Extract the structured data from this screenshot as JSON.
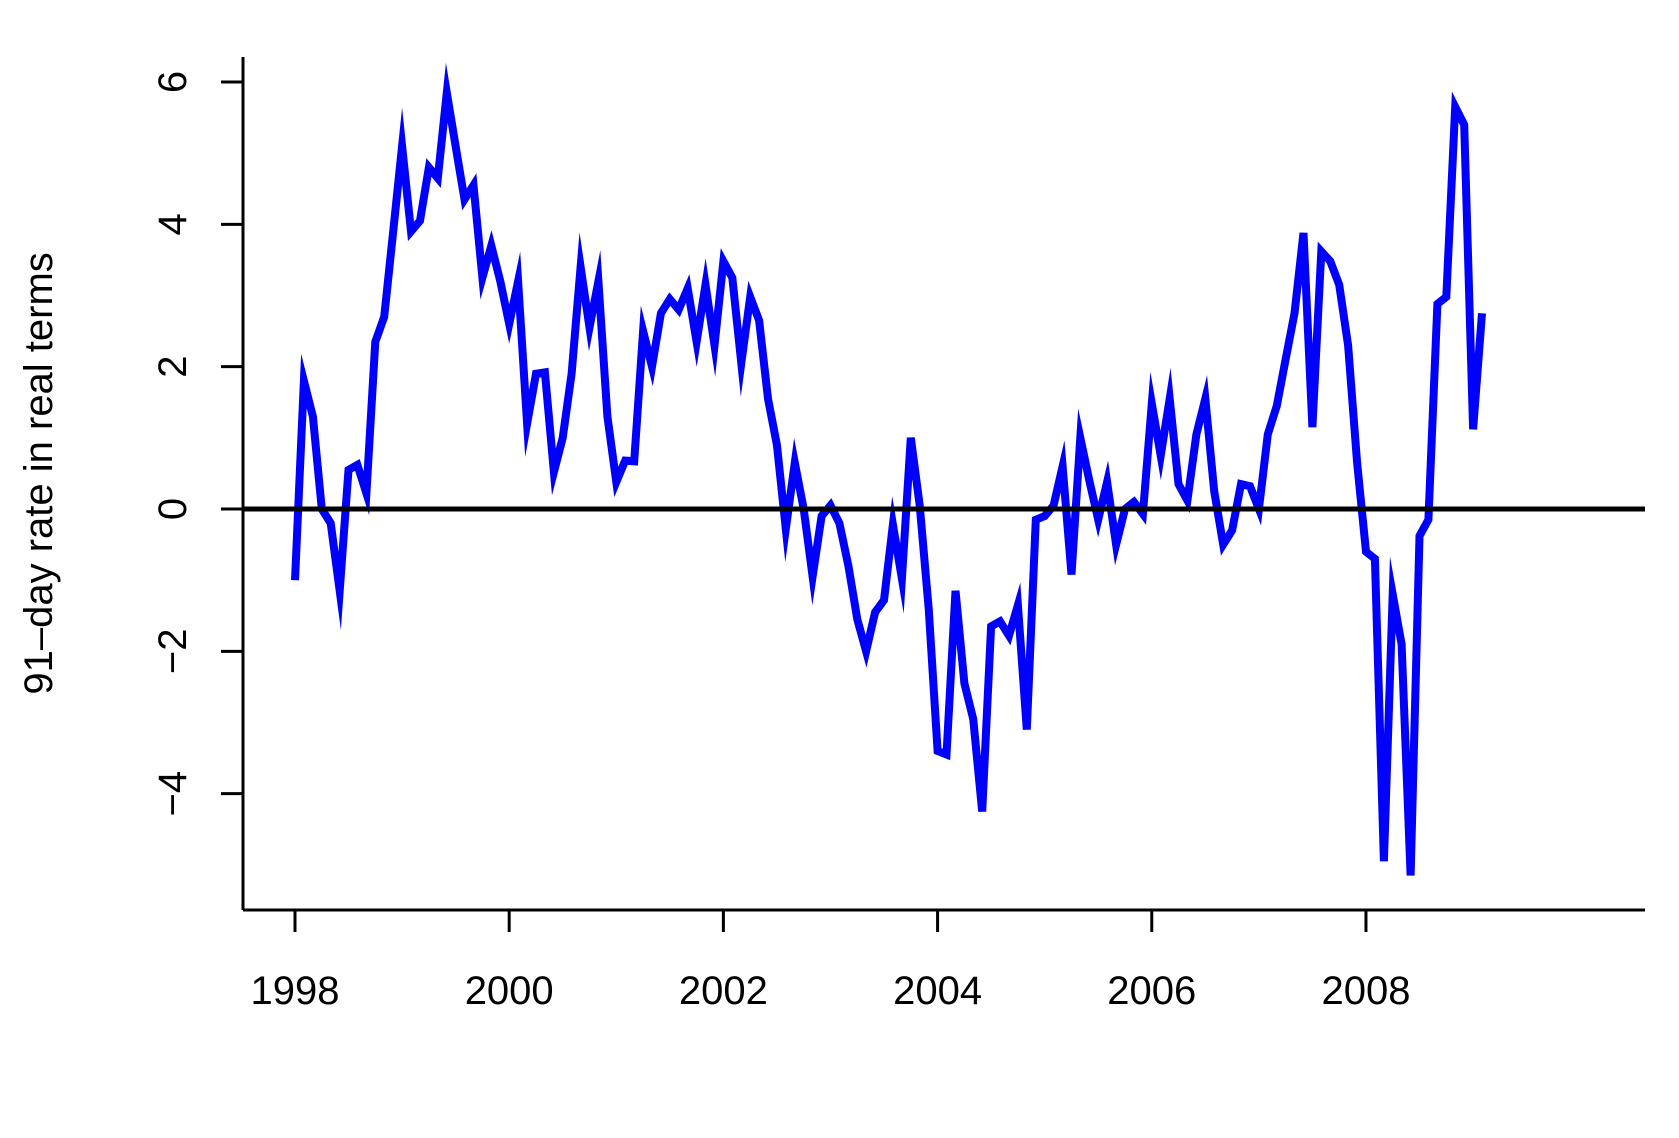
{
  "chart_data": {
    "type": "line",
    "title": "",
    "xlabel": "",
    "ylabel": "91–day rate in real terms",
    "xlim": [
      1997.78,
      2009.8
    ],
    "ylim": [
      -5.3,
      6.3
    ],
    "x_ticks": [
      1998,
      2000,
      2002,
      2004,
      2006,
      2008
    ],
    "x_tick_labels": [
      "1998",
      "2000",
      "2002",
      "2004",
      "2006",
      "2008"
    ],
    "y_ticks": [
      -4,
      -2,
      0,
      2,
      4,
      6
    ],
    "y_tick_labels": [
      "−4",
      "−2",
      "0",
      "2",
      "4",
      "6"
    ],
    "reference_line": {
      "y": 0,
      "color": "#000000"
    },
    "grid": false,
    "series": [
      {
        "color": "#0000ff",
        "x": [
          1998.0,
          1998.083,
          1998.167,
          1998.25,
          1998.333,
          1998.417,
          1998.5,
          1998.583,
          1998.667,
          1998.75,
          1998.833,
          1998.917,
          1999.0,
          1999.083,
          1999.167,
          1999.25,
          1999.333,
          1999.417,
          1999.5,
          1999.583,
          1999.667,
          1999.75,
          1999.833,
          1999.917,
          2000.0,
          2000.083,
          2000.167,
          2000.25,
          2000.333,
          2000.417,
          2000.5,
          2000.583,
          2000.667,
          2000.75,
          2000.833,
          2000.917,
          2001.0,
          2001.083,
          2001.167,
          2001.25,
          2001.333,
          2001.417,
          2001.5,
          2001.583,
          2001.667,
          2001.75,
          2001.833,
          2001.917,
          2002.0,
          2002.083,
          2002.167,
          2002.25,
          2002.333,
          2002.417,
          2002.5,
          2002.583,
          2002.667,
          2002.75,
          2002.833,
          2002.917,
          2003.0,
          2003.083,
          2003.167,
          2003.25,
          2003.333,
          2003.417,
          2003.5,
          2003.583,
          2003.667,
          2003.75,
          2003.833,
          2003.917,
          2004.0,
          2004.083,
          2004.167,
          2004.25,
          2004.333,
          2004.417,
          2004.5,
          2004.583,
          2004.667,
          2004.75,
          2004.833,
          2004.917,
          2005.0,
          2005.083,
          2005.167,
          2005.25,
          2005.333,
          2005.417,
          2005.5,
          2005.583,
          2005.667,
          2005.75,
          2005.833,
          2005.917,
          2006.0,
          2006.083,
          2006.167,
          2006.25,
          2006.333,
          2006.417,
          2006.5,
          2006.583,
          2006.667,
          2006.75,
          2006.833,
          2006.917,
          2007.0,
          2007.083,
          2007.167,
          2007.25,
          2007.333,
          2007.417,
          2007.5,
          2007.583,
          2007.667,
          2007.75,
          2007.833,
          2007.917,
          2008.0,
          2008.083,
          2008.167,
          2008.25,
          2008.333,
          2008.417,
          2008.5,
          2008.583,
          2008.667,
          2008.75,
          2008.833,
          2008.917,
          2009.0,
          2009.083
        ],
        "y": [
          -1.0,
          1.8,
          1.3,
          0.0,
          -0.2,
          -1.15,
          0.55,
          0.62,
          0.22,
          2.35,
          2.7,
          3.9,
          5.1,
          3.9,
          4.05,
          4.8,
          4.65,
          5.85,
          5.1,
          4.35,
          4.55,
          3.25,
          3.7,
          3.2,
          2.6,
          3.2,
          1.2,
          1.9,
          1.92,
          0.52,
          1.0,
          1.9,
          3.4,
          2.55,
          3.2,
          1.3,
          0.38,
          0.68,
          0.67,
          2.5,
          2.0,
          2.75,
          2.95,
          2.8,
          3.1,
          2.35,
          3.15,
          2.3,
          3.48,
          3.25,
          2.05,
          2.98,
          2.65,
          1.55,
          0.9,
          -0.28,
          0.65,
          0.0,
          -0.95,
          -0.1,
          0.05,
          -0.2,
          -0.8,
          -1.55,
          -2.0,
          -1.45,
          -1.28,
          -0.22,
          -0.98,
          1.0,
          0.05,
          -1.4,
          -3.4,
          -3.45,
          -1.15,
          -2.45,
          -2.95,
          -4.25,
          -1.65,
          -1.58,
          -1.78,
          -1.35,
          -3.1,
          -0.15,
          -0.1,
          0.05,
          0.6,
          -0.92,
          1.0,
          0.4,
          -0.15,
          0.38,
          -0.5,
          0.0,
          0.1,
          -0.07,
          1.48,
          0.75,
          1.55,
          0.35,
          0.12,
          1.05,
          1.55,
          0.25,
          -0.5,
          -0.3,
          0.35,
          0.32,
          0.0,
          1.05,
          1.45,
          2.1,
          2.75,
          3.88,
          1.15,
          3.62,
          3.48,
          3.15,
          2.3,
          0.65,
          -0.6,
          -0.7,
          -4.95,
          -1.2,
          -1.9,
          -5.15,
          -0.38,
          -0.15,
          2.88,
          2.98,
          5.65,
          5.4,
          1.12,
          2.75
        ]
      }
    ]
  }
}
